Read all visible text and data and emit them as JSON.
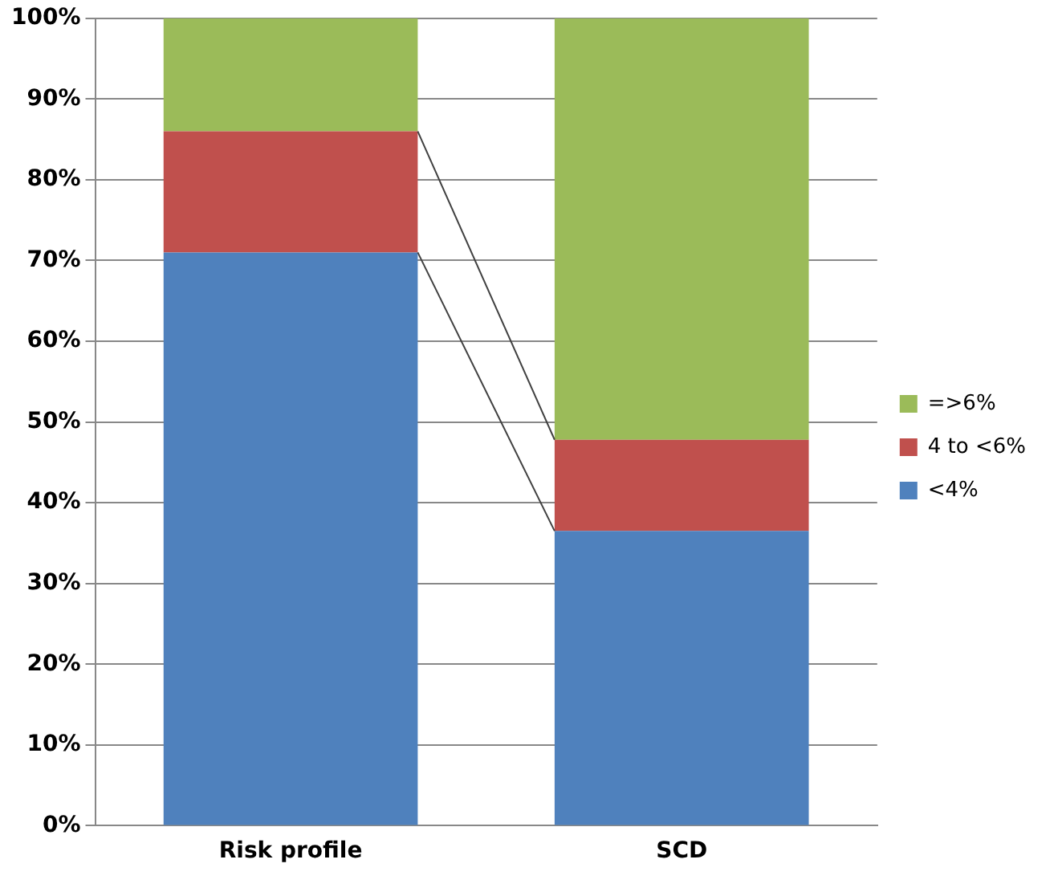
{
  "chart_data": {
    "type": "bar",
    "stacked": true,
    "categories": [
      "Risk profile",
      "SCD"
    ],
    "series": [
      {
        "name": "<4%",
        "color": "#4f81bd",
        "values": [
          71,
          36.5
        ]
      },
      {
        "name": "4 to <6%",
        "color": "#c0504d",
        "values": [
          15,
          11.3
        ]
      },
      {
        "name": "=>6%",
        "color": "#9bbb59",
        "values": [
          14,
          52.2
        ]
      }
    ],
    "ylim": [
      0,
      100
    ],
    "yticks": [
      {
        "value": 0,
        "label": "0%"
      },
      {
        "value": 10,
        "label": "10%"
      },
      {
        "value": 20,
        "label": "20%"
      },
      {
        "value": 30,
        "label": "30%"
      },
      {
        "value": 40,
        "label": "40%"
      },
      {
        "value": 50,
        "label": "50%"
      },
      {
        "value": 60,
        "label": "60%"
      },
      {
        "value": 70,
        "label": "70%"
      },
      {
        "value": 80,
        "label": "80%"
      },
      {
        "value": 90,
        "label": "90%"
      },
      {
        "value": 100,
        "label": "100%"
      }
    ],
    "grid": "y",
    "legend": "right"
  }
}
